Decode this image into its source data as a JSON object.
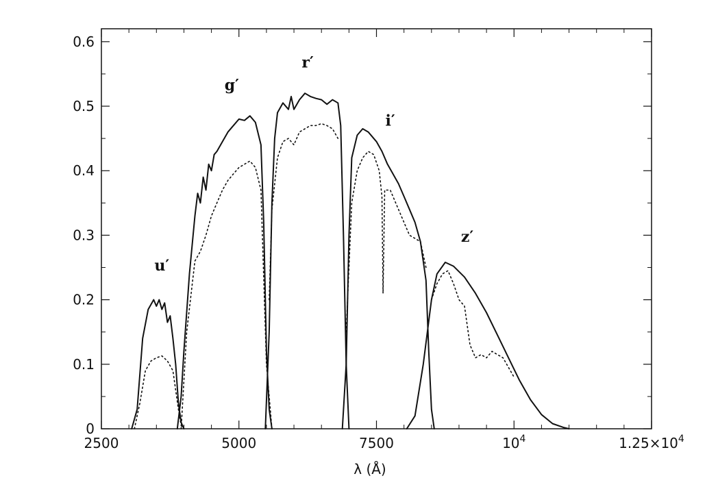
{
  "chart_data": {
    "type": "line",
    "title": "",
    "xlabel": "λ (Å)",
    "ylabel": "",
    "xlim": [
      2500,
      12500
    ],
    "ylim": [
      0,
      0.62
    ],
    "x_ticks": [
      {
        "value": 2500,
        "label": "2500"
      },
      {
        "value": 5000,
        "label": "5000"
      },
      {
        "value": 7500,
        "label": "7500"
      },
      {
        "value": 10000,
        "label": "10",
        "sup": "4"
      },
      {
        "value": 12500,
        "label": "1.25×10",
        "sup": "4"
      }
    ],
    "y_ticks": [
      {
        "value": 0,
        "label": "0"
      },
      {
        "value": 0.1,
        "label": "0.1"
      },
      {
        "value": 0.2,
        "label": "0.2"
      },
      {
        "value": 0.3,
        "label": "0.3"
      },
      {
        "value": 0.4,
        "label": "0.4"
      },
      {
        "value": 0.5,
        "label": "0.5"
      },
      {
        "value": 0.6,
        "label": "0.6"
      }
    ],
    "grid": false,
    "band_labels": [
      {
        "text": "u′",
        "x": 3600,
        "y": 0.245
      },
      {
        "text": "g′",
        "x": 4870,
        "y": 0.525
      },
      {
        "text": "r′",
        "x": 6250,
        "y": 0.56
      },
      {
        "text": "i′",
        "x": 7750,
        "y": 0.47
      },
      {
        "text": "z′",
        "x": 9150,
        "y": 0.29
      }
    ],
    "series": [
      {
        "band": "u′",
        "style": "solid",
        "points": [
          [
            3050,
            0
          ],
          [
            3150,
            0.03
          ],
          [
            3250,
            0.14
          ],
          [
            3350,
            0.185
          ],
          [
            3450,
            0.2
          ],
          [
            3500,
            0.19
          ],
          [
            3550,
            0.2
          ],
          [
            3600,
            0.185
          ],
          [
            3650,
            0.195
          ],
          [
            3700,
            0.165
          ],
          [
            3750,
            0.175
          ],
          [
            3800,
            0.14
          ],
          [
            3850,
            0.1
          ],
          [
            3900,
            0.04
          ],
          [
            3950,
            0.01
          ],
          [
            4000,
            0
          ]
        ]
      },
      {
        "band": "u′",
        "style": "dotted",
        "points": [
          [
            3100,
            0
          ],
          [
            3200,
            0.04
          ],
          [
            3300,
            0.09
          ],
          [
            3400,
            0.105
          ],
          [
            3500,
            0.11
          ],
          [
            3600,
            0.113
          ],
          [
            3700,
            0.105
          ],
          [
            3800,
            0.09
          ],
          [
            3850,
            0.06
          ],
          [
            3900,
            0.03
          ],
          [
            3950,
            0.005
          ],
          [
            4000,
            0
          ]
        ]
      },
      {
        "band": "g′",
        "style": "solid",
        "points": [
          [
            3880,
            0
          ],
          [
            3950,
            0.05
          ],
          [
            4000,
            0.12
          ],
          [
            4100,
            0.24
          ],
          [
            4200,
            0.33
          ],
          [
            4250,
            0.365
          ],
          [
            4300,
            0.35
          ],
          [
            4350,
            0.39
          ],
          [
            4400,
            0.37
          ],
          [
            4450,
            0.41
          ],
          [
            4500,
            0.4
          ],
          [
            4550,
            0.425
          ],
          [
            4600,
            0.43
          ],
          [
            4700,
            0.445
          ],
          [
            4800,
            0.46
          ],
          [
            4900,
            0.47
          ],
          [
            5000,
            0.48
          ],
          [
            5100,
            0.478
          ],
          [
            5200,
            0.485
          ],
          [
            5300,
            0.475
          ],
          [
            5400,
            0.44
          ],
          [
            5450,
            0.32
          ],
          [
            5500,
            0.12
          ],
          [
            5550,
            0.03
          ],
          [
            5600,
            0
          ]
        ]
      },
      {
        "band": "g′",
        "style": "dotted",
        "points": [
          [
            3950,
            0
          ],
          [
            4050,
            0.15
          ],
          [
            4200,
            0.26
          ],
          [
            4300,
            0.275
          ],
          [
            4400,
            0.3
          ],
          [
            4500,
            0.33
          ],
          [
            4600,
            0.35
          ],
          [
            4700,
            0.37
          ],
          [
            4800,
            0.385
          ],
          [
            4900,
            0.395
          ],
          [
            5000,
            0.405
          ],
          [
            5100,
            0.41
          ],
          [
            5200,
            0.415
          ],
          [
            5300,
            0.405
          ],
          [
            5400,
            0.37
          ],
          [
            5500,
            0.1
          ],
          [
            5600,
            0
          ]
        ]
      },
      {
        "band": "r′",
        "style": "solid",
        "points": [
          [
            5480,
            0
          ],
          [
            5550,
            0.15
          ],
          [
            5600,
            0.35
          ],
          [
            5650,
            0.45
          ],
          [
            5700,
            0.49
          ],
          [
            5800,
            0.505
          ],
          [
            5900,
            0.495
          ],
          [
            5950,
            0.515
          ],
          [
            6000,
            0.495
          ],
          [
            6100,
            0.51
          ],
          [
            6200,
            0.52
          ],
          [
            6300,
            0.515
          ],
          [
            6400,
            0.512
          ],
          [
            6500,
            0.51
          ],
          [
            6600,
            0.503
          ],
          [
            6700,
            0.51
          ],
          [
            6800,
            0.505
          ],
          [
            6850,
            0.47
          ],
          [
            6900,
            0.3
          ],
          [
            6950,
            0.1
          ],
          [
            7000,
            0
          ]
        ]
      },
      {
        "band": "r′",
        "style": "dotted",
        "points": [
          [
            5550,
            0.2
          ],
          [
            5600,
            0.34
          ],
          [
            5700,
            0.42
          ],
          [
            5800,
            0.445
          ],
          [
            5900,
            0.45
          ],
          [
            6000,
            0.44
          ],
          [
            6100,
            0.46
          ],
          [
            6200,
            0.465
          ],
          [
            6300,
            0.47
          ],
          [
            6400,
            0.47
          ],
          [
            6500,
            0.473
          ],
          [
            6600,
            0.47
          ],
          [
            6700,
            0.465
          ],
          [
            6800,
            0.45
          ]
        ]
      },
      {
        "band": "i′",
        "style": "solid",
        "points": [
          [
            6880,
            0
          ],
          [
            6950,
            0.1
          ],
          [
            7000,
            0.3
          ],
          [
            7050,
            0.42
          ],
          [
            7150,
            0.455
          ],
          [
            7250,
            0.465
          ],
          [
            7350,
            0.46
          ],
          [
            7500,
            0.445
          ],
          [
            7600,
            0.43
          ],
          [
            7700,
            0.41
          ],
          [
            7800,
            0.395
          ],
          [
            7900,
            0.38
          ],
          [
            8000,
            0.36
          ],
          [
            8100,
            0.34
          ],
          [
            8200,
            0.32
          ],
          [
            8300,
            0.29
          ],
          [
            8400,
            0.23
          ],
          [
            8450,
            0.12
          ],
          [
            8500,
            0.03
          ],
          [
            8550,
            0
          ]
        ]
      },
      {
        "band": "i′",
        "style": "dotted",
        "points": [
          [
            6950,
            0.15
          ],
          [
            7050,
            0.35
          ],
          [
            7150,
            0.4
          ],
          [
            7250,
            0.42
          ],
          [
            7350,
            0.43
          ],
          [
            7450,
            0.425
          ],
          [
            7550,
            0.4
          ],
          [
            7600,
            0.36
          ],
          [
            7620,
            0.21
          ],
          [
            7650,
            0.37
          ],
          [
            7750,
            0.37
          ],
          [
            7900,
            0.34
          ],
          [
            8100,
            0.3
          ],
          [
            8300,
            0.29
          ],
          [
            8400,
            0.25
          ]
        ]
      },
      {
        "band": "z′",
        "style": "solid",
        "points": [
          [
            8050,
            0
          ],
          [
            8200,
            0.02
          ],
          [
            8350,
            0.1
          ],
          [
            8500,
            0.2
          ],
          [
            8600,
            0.24
          ],
          [
            8750,
            0.258
          ],
          [
            8900,
            0.252
          ],
          [
            9100,
            0.235
          ],
          [
            9300,
            0.21
          ],
          [
            9500,
            0.18
          ],
          [
            9700,
            0.145
          ],
          [
            9900,
            0.11
          ],
          [
            10100,
            0.075
          ],
          [
            10300,
            0.045
          ],
          [
            10500,
            0.022
          ],
          [
            10700,
            0.008
          ],
          [
            10900,
            0.002
          ],
          [
            11000,
            0
          ]
        ]
      },
      {
        "band": "z′",
        "style": "dotted",
        "points": [
          [
            8500,
            0.2
          ],
          [
            8600,
            0.225
          ],
          [
            8700,
            0.24
          ],
          [
            8800,
            0.245
          ],
          [
            8900,
            0.225
          ],
          [
            9000,
            0.2
          ],
          [
            9100,
            0.19
          ],
          [
            9200,
            0.13
          ],
          [
            9300,
            0.11
          ],
          [
            9400,
            0.115
          ],
          [
            9500,
            0.11
          ],
          [
            9600,
            0.12
          ],
          [
            9700,
            0.115
          ],
          [
            9800,
            0.11
          ],
          [
            10000,
            0.08
          ]
        ]
      }
    ]
  }
}
